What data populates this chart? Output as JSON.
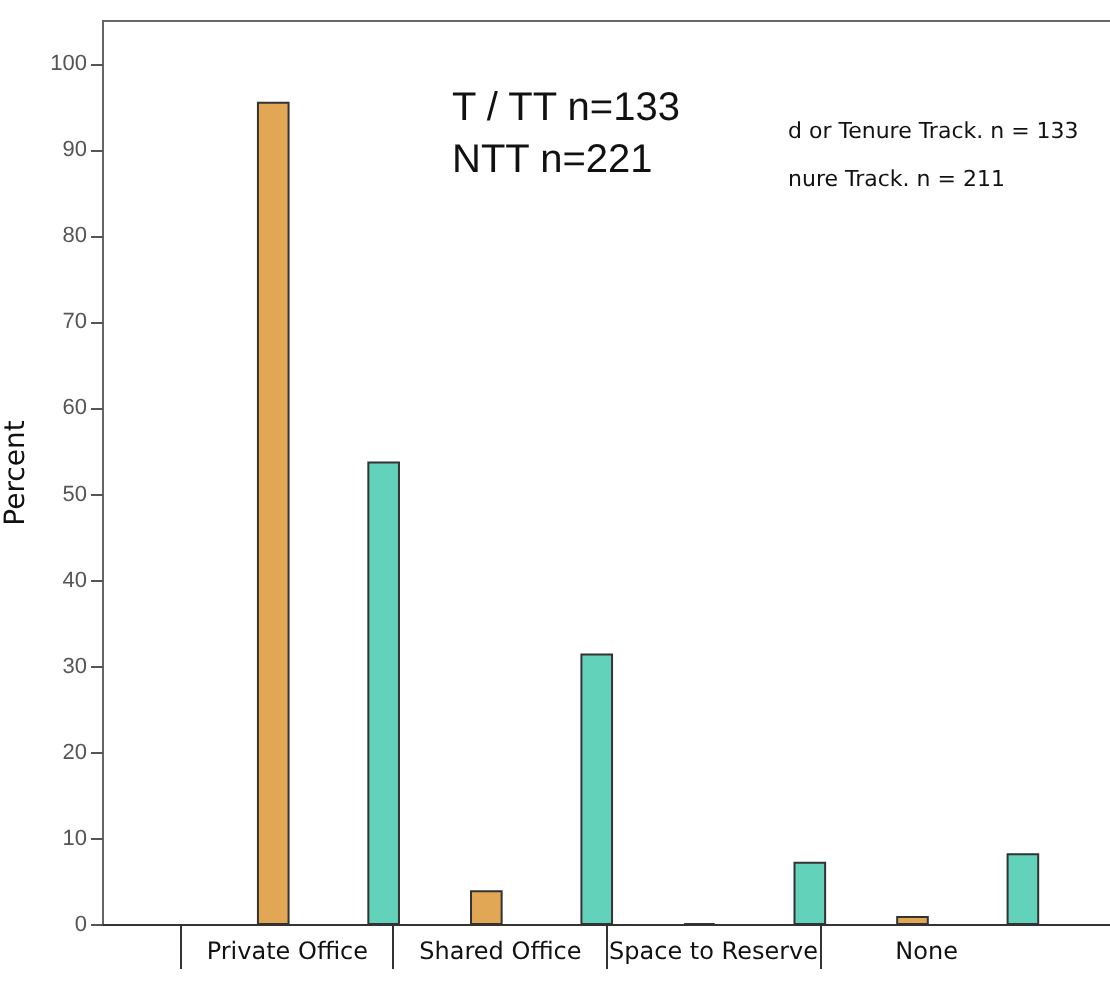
{
  "chart_data": {
    "type": "bar",
    "ylabel": "Percent",
    "categories": [
      "Private Office",
      "Shared Office",
      "Space to Reserve",
      "None"
    ],
    "series": [
      {
        "color": "#e2a755",
        "values": [
          95.4,
          3.8,
          0,
          0.8
        ]
      },
      {
        "color": "#62d2bb",
        "values": [
          53.6,
          31.3,
          7.1,
          8.1
        ]
      }
    ],
    "ylim": [
      0,
      105
    ],
    "yticks": [
      0,
      10,
      20,
      30,
      40,
      50,
      60,
      70,
      80,
      90,
      100
    ],
    "grid": false,
    "legend": false,
    "annotations": [
      "T / TT  n=133",
      "NTT  n=221",
      "d or Tenure Track. n = 133",
      "nure Track. n = 211"
    ]
  }
}
